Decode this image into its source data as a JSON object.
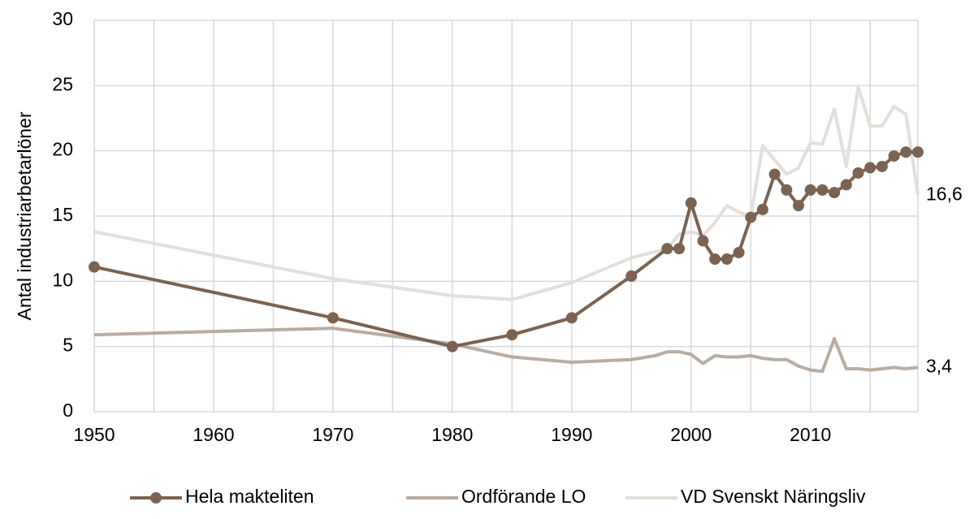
{
  "chart_data": {
    "type": "line",
    "ylabel": "Antal industriarbetarlöner",
    "xlim": [
      1950,
      2019
    ],
    "xticks": [
      1950,
      1960,
      1970,
      1980,
      1990,
      2000,
      2010
    ],
    "xminor_ticks": [
      1955,
      1965,
      1975,
      1985,
      1995,
      2005,
      2015
    ],
    "ylim": [
      0,
      30
    ],
    "yticks": [
      0,
      5,
      10,
      15,
      20,
      25,
      30
    ],
    "grid": true,
    "legend": "bottom",
    "series": [
      {
        "name": "Hela makteliten",
        "color": "#7a6352",
        "marker": "circle",
        "x": [
          1950,
          1970,
          1980,
          1985,
          1990,
          1995,
          1998,
          1999,
          2000,
          2001,
          2002,
          2003,
          2004,
          2005,
          2006,
          2007,
          2008,
          2009,
          2010,
          2011,
          2012,
          2013,
          2014,
          2015,
          2016,
          2017,
          2018,
          2019
        ],
        "values": [
          11.1,
          7.2,
          5.0,
          5.9,
          7.2,
          10.4,
          12.5,
          12.5,
          16.0,
          13.1,
          11.7,
          11.7,
          12.2,
          14.9,
          15.5,
          18.2,
          17.0,
          15.8,
          17.0,
          17.0,
          16.8,
          17.4,
          18.3,
          18.7,
          18.8,
          19.6,
          19.9,
          19.9
        ]
      },
      {
        "name": "Ordförande LO",
        "color": "#b8ada3",
        "x": [
          1950,
          1970,
          1980,
          1985,
          1990,
          1995,
          1997,
          1998,
          1999,
          2000,
          2001,
          2002,
          2003,
          2004,
          2005,
          2006,
          2007,
          2008,
          2009,
          2010,
          2011,
          2012,
          2013,
          2014,
          2015,
          2016,
          2017,
          2018,
          2019
        ],
        "values": [
          5.9,
          6.4,
          5.2,
          4.2,
          3.8,
          4.0,
          4.3,
          4.6,
          4.6,
          4.4,
          3.7,
          4.3,
          4.2,
          4.2,
          4.3,
          4.1,
          4.0,
          4.0,
          3.5,
          3.2,
          3.1,
          5.6,
          3.3,
          3.3,
          3.2,
          3.3,
          3.4,
          3.3,
          3.4
        ],
        "value_labels": [
          null,
          null,
          null,
          null,
          null,
          null,
          null,
          null,
          null,
          null,
          null,
          null,
          null,
          null,
          null,
          null,
          null,
          null,
          null,
          null,
          null,
          null,
          null,
          null,
          null,
          null,
          null,
          null,
          "3,4"
        ]
      },
      {
        "name": "VD Svenskt Näringsliv",
        "color": "#e4dfda",
        "x": [
          1950,
          1970,
          1980,
          1985,
          1990,
          1995,
          1998,
          1999,
          2000,
          2001,
          2002,
          2003,
          2004,
          2005,
          2006,
          2007,
          2008,
          2009,
          2010,
          2011,
          2012,
          2013,
          2014,
          2015,
          2016,
          2017,
          2018,
          2019
        ],
        "values": [
          13.8,
          10.2,
          8.9,
          8.6,
          9.9,
          11.8,
          12.5,
          13.6,
          13.8,
          13.5,
          14.5,
          15.8,
          15.3,
          15.0,
          20.4,
          19.3,
          18.2,
          18.7,
          20.6,
          20.5,
          23.2,
          18.8,
          24.9,
          21.9,
          21.9,
          23.4,
          22.8,
          16.6
        ],
        "value_labels": [
          null,
          null,
          null,
          null,
          null,
          null,
          null,
          null,
          null,
          null,
          null,
          null,
          null,
          null,
          null,
          null,
          null,
          null,
          null,
          null,
          null,
          null,
          null,
          null,
          null,
          null,
          null,
          "16,6"
        ]
      }
    ]
  }
}
